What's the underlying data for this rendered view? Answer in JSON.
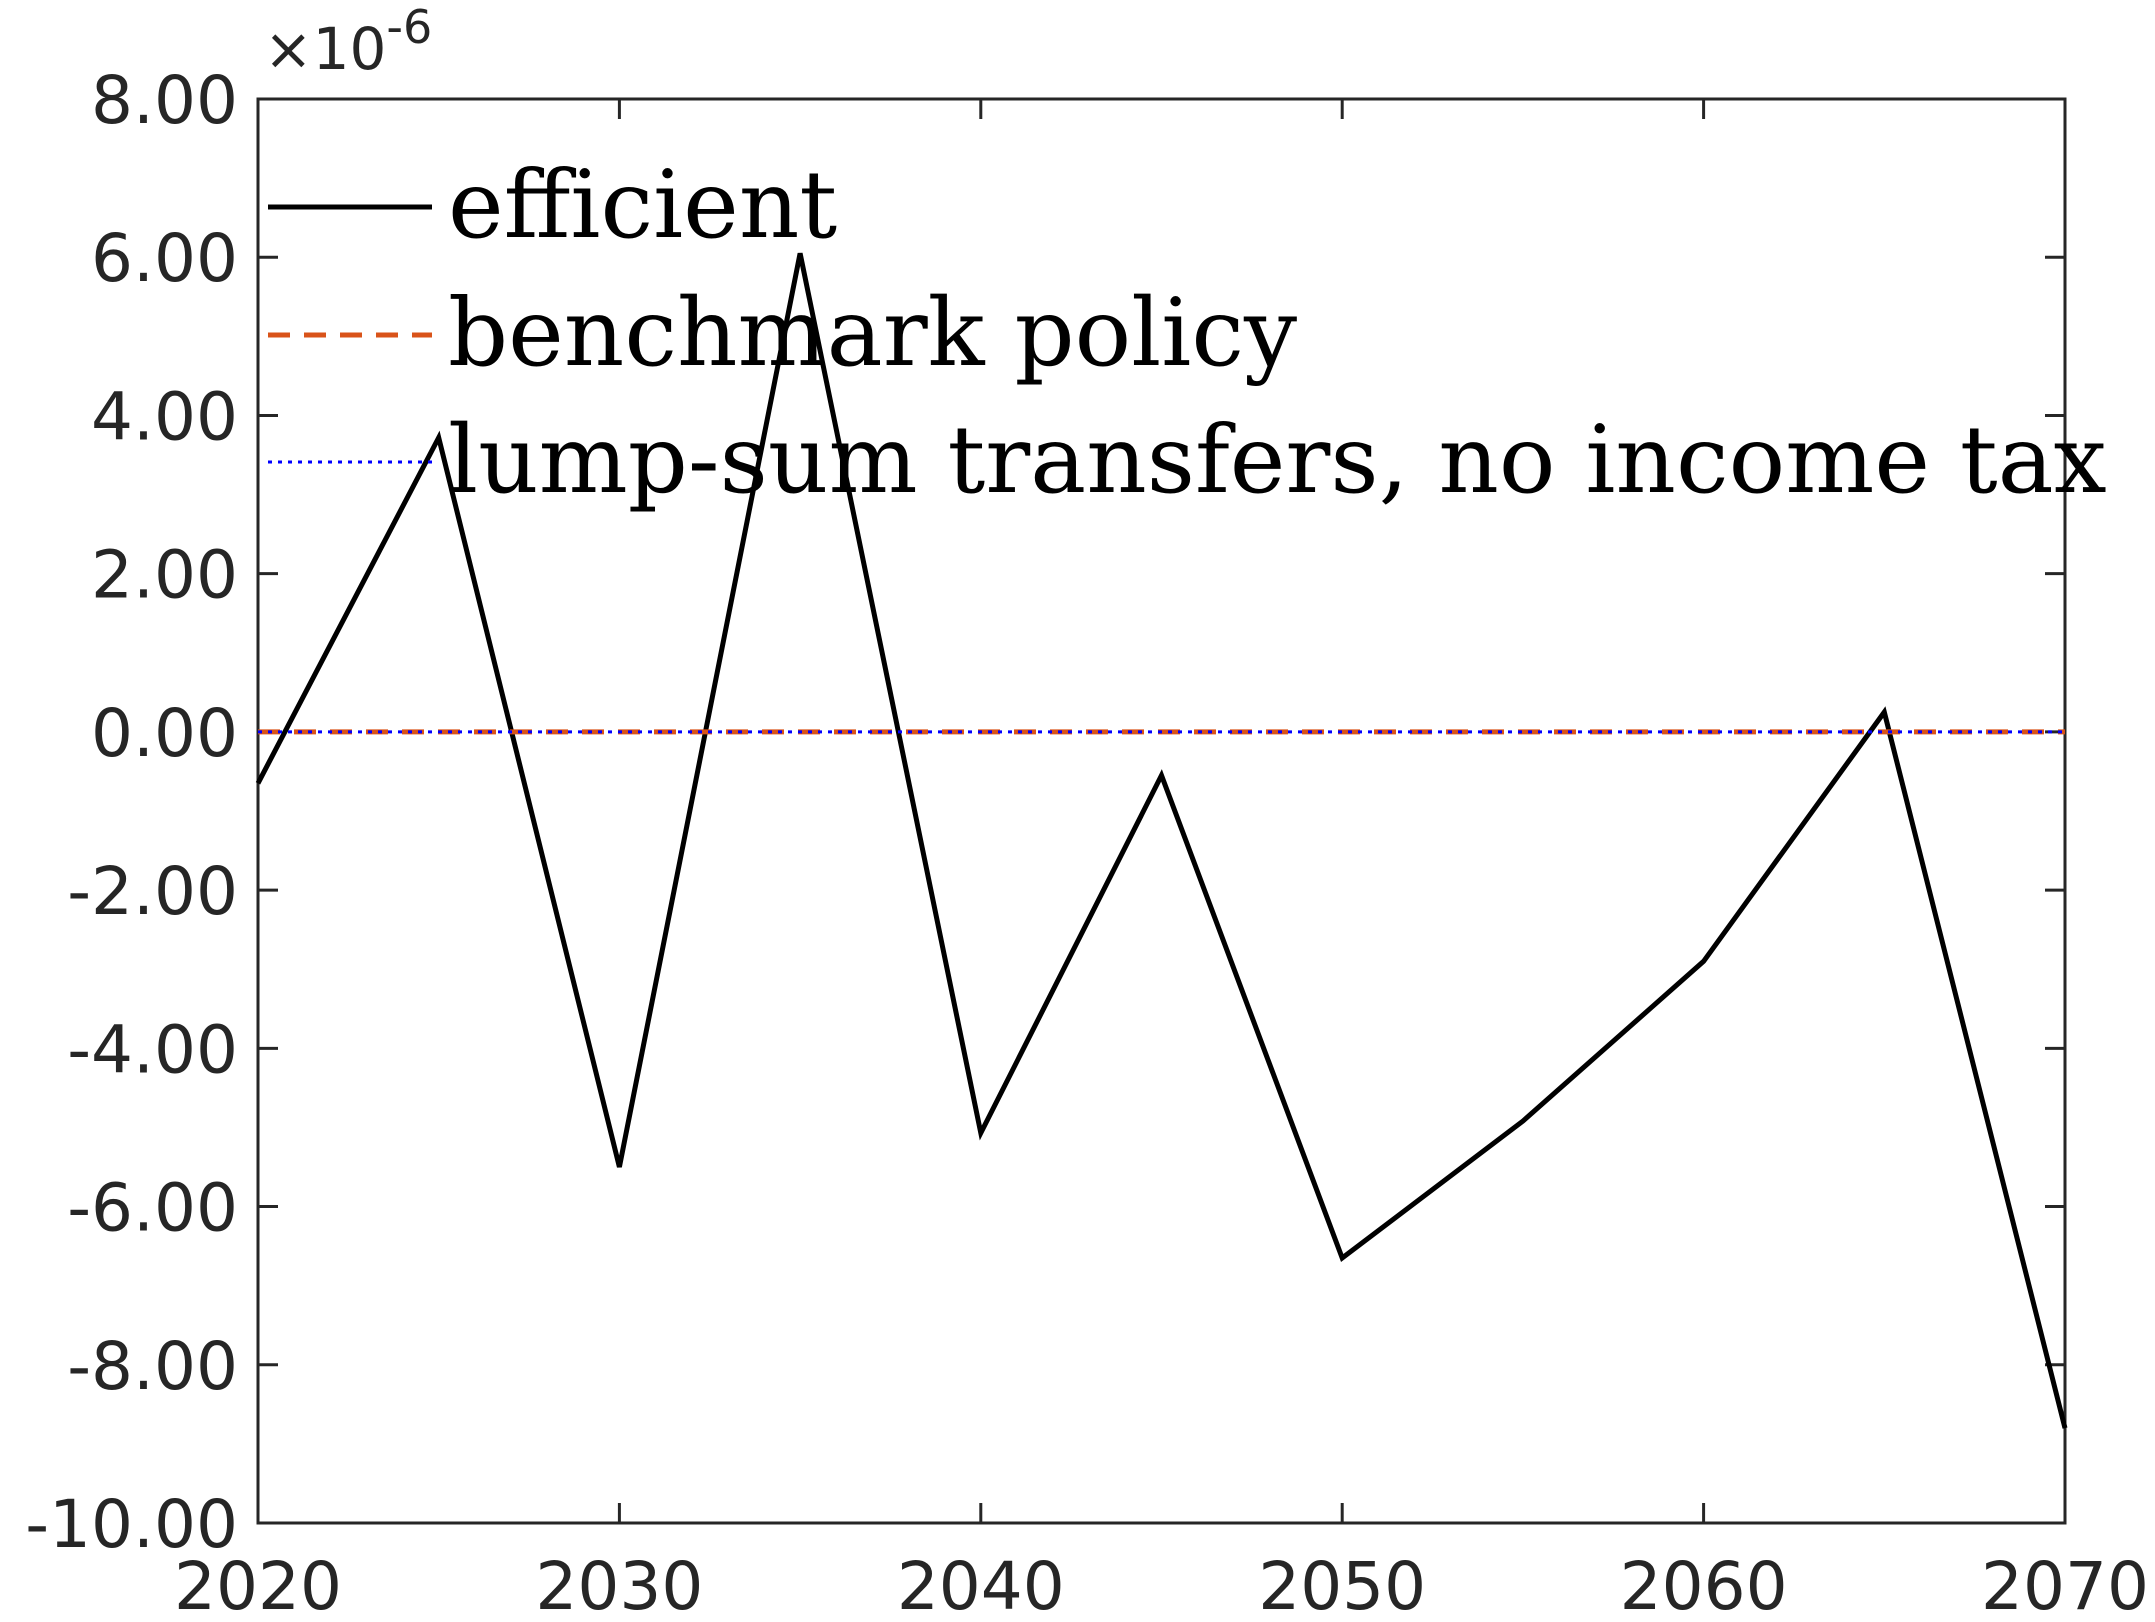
{
  "chart_data": {
    "type": "line",
    "title": "",
    "xlabel": "",
    "ylabel": "",
    "y_exponent_label": "×10",
    "y_exponent_power": "-6",
    "x": [
      2020,
      2025,
      2030,
      2035,
      2040,
      2045,
      2050,
      2055,
      2060,
      2065,
      2070
    ],
    "xlim": [
      2020,
      2070
    ],
    "ylim": [
      -10,
      8
    ],
    "x_ticks": [
      2020,
      2030,
      2040,
      2050,
      2060,
      2070
    ],
    "x_tick_labels": [
      "2020",
      "2030",
      "2040",
      "2050",
      "2060",
      "2070"
    ],
    "y_ticks": [
      8,
      6,
      4,
      2,
      0,
      -2,
      -4,
      -6,
      -8,
      -10
    ],
    "y_tick_labels": [
      "8.00",
      "6.00",
      "4.00",
      "2.00",
      "0.00",
      "-2.00",
      "-4.00",
      "-6.00",
      "-8.00",
      "-10.00"
    ],
    "grid": false,
    "legend_position": "top-left",
    "series": [
      {
        "name": "efficient",
        "style": "solid",
        "color": "#000000",
        "values": [
          -0.65,
          3.72,
          -5.5,
          6.05,
          -5.07,
          -0.55,
          -6.65,
          -4.92,
          -2.9,
          0.25,
          -8.8
        ]
      },
      {
        "name": "benchmark policy",
        "style": "dashed",
        "color": "#D95319",
        "values": [
          0,
          0,
          0,
          0,
          0,
          0,
          0,
          0,
          0,
          0,
          0
        ]
      },
      {
        "name": "lump-sum transfers, no income tax",
        "style": "dotted",
        "color": "#0000FF",
        "values": [
          0,
          0,
          0,
          0,
          0,
          0,
          0,
          0,
          0,
          0,
          0
        ]
      }
    ]
  }
}
